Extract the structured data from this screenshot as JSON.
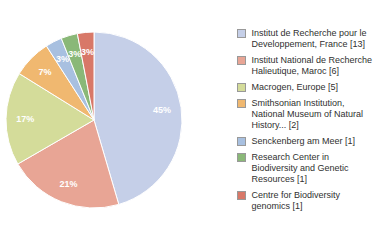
{
  "chart_data": {
    "type": "pie",
    "categories": [
      "Institut de Recherche pour le\nDeveloppement, France [13]",
      "Institut National de Recherche\nHalieutique, Maroc [6]",
      "Macrogen, Europe [5]",
      "Smithsonian Institution,\nNational Museum of Natural\nHistory... [2]",
      "Senckenberg am Meer [1]",
      "Research Center in\nBiodiversity and Genetic\nResources [1]",
      "Centre for Biodiversity\ngenomics [1]"
    ],
    "values": [
      45,
      21,
      17,
      7,
      3,
      3,
      3
    ],
    "value_labels": [
      "45%",
      "21%",
      "17%",
      "7%",
      "3%",
      "3%",
      "3%"
    ],
    "colors": [
      "#c5cfe8",
      "#e8a595",
      "#d4dc9a",
      "#f0b870",
      "#a8c0e0",
      "#8ab878",
      "#d87868"
    ],
    "data_labels": true,
    "legend": "right"
  }
}
